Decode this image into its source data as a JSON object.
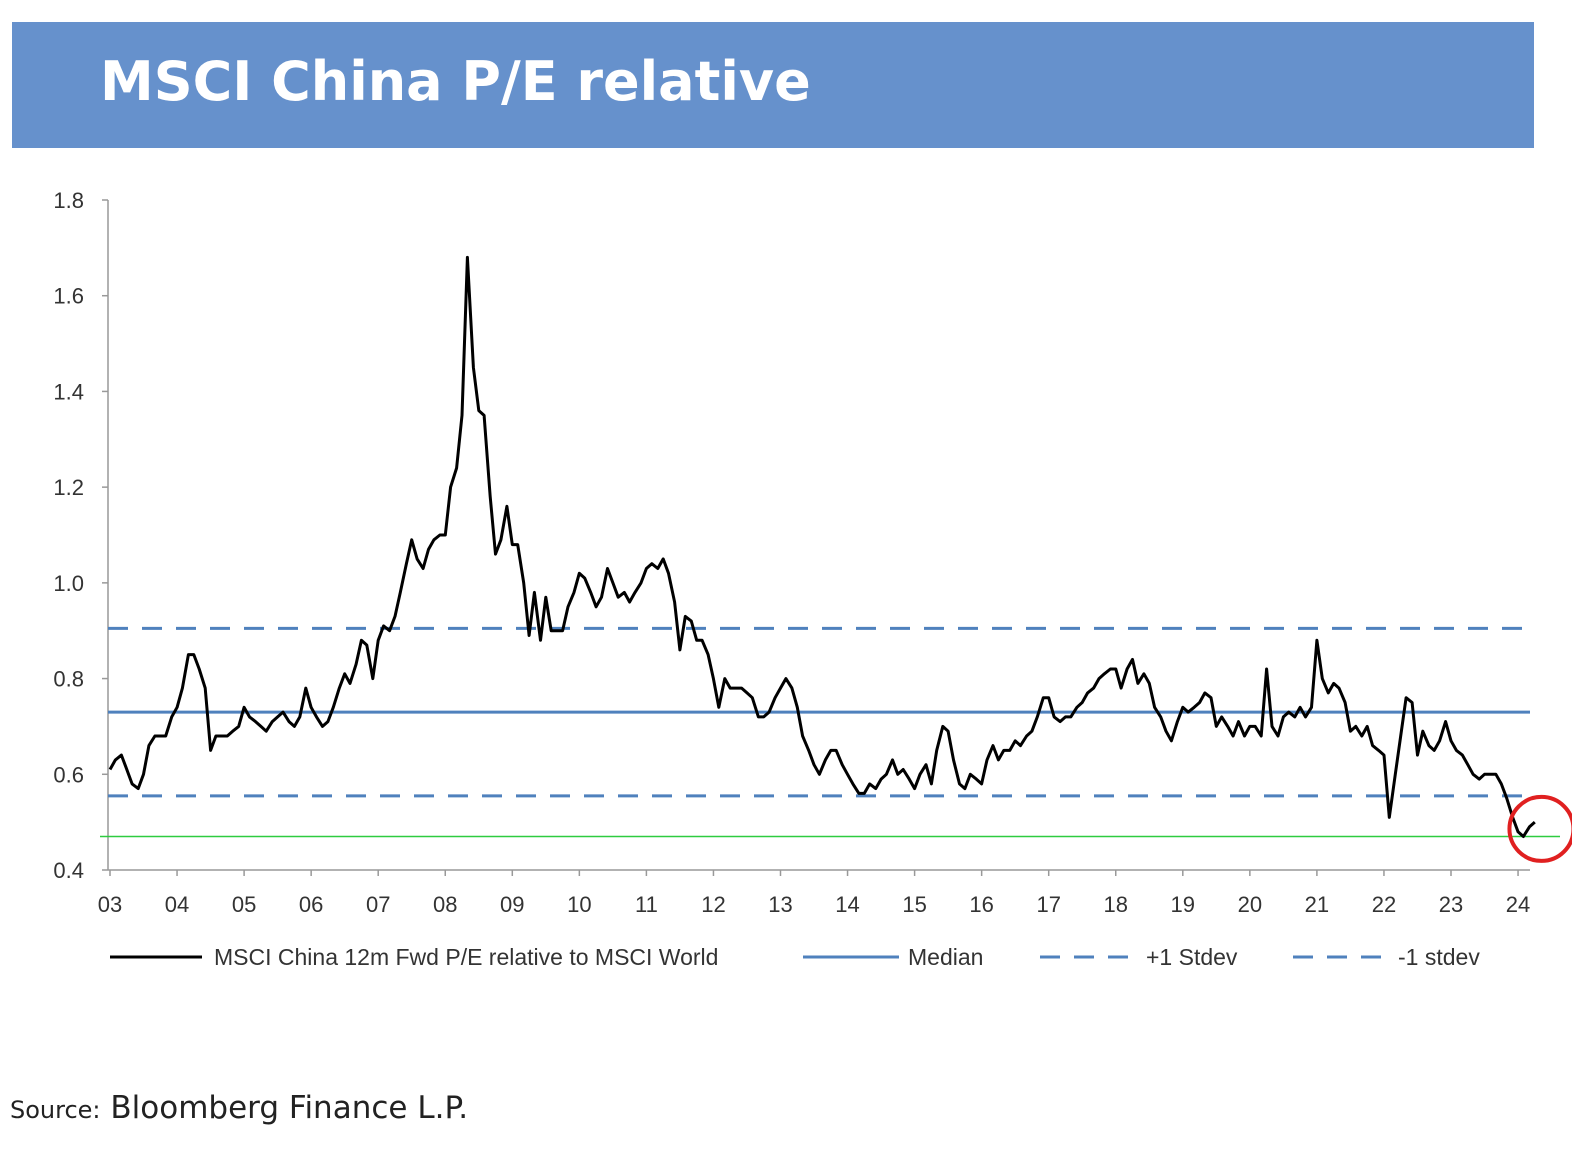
{
  "title": "MSCI China P/E relative",
  "source": {
    "label": "Source:",
    "text": "Bloomberg Finance L.P."
  },
  "colors": {
    "banner": "#6691cc",
    "series": "#000000",
    "median": "#4f81bd",
    "stdev": "#4f81bd",
    "low_line": "#2ecc40",
    "highlight_circle": "#e02020"
  },
  "chart_data": {
    "type": "line",
    "x_tick_labels": [
      "03",
      "04",
      "05",
      "06",
      "07",
      "08",
      "09",
      "10",
      "11",
      "12",
      "13",
      "14",
      "15",
      "16",
      "17",
      "18",
      "19",
      "20",
      "21",
      "22",
      "23",
      "24"
    ],
    "x_range": [
      2003.0,
      2024.3
    ],
    "y_tick_labels": [
      "0.4",
      "0.6",
      "0.8",
      "1.0",
      "1.2",
      "1.4",
      "1.6",
      "1.8"
    ],
    "ylim": [
      0.4,
      1.8
    ],
    "grid": false,
    "legend_position": "bottom",
    "series": [
      {
        "name": "MSCI China 12m Fwd P/E relative to MSCI World",
        "style": "solid-black",
        "points": [
          [
            2003.0,
            0.61
          ],
          [
            2003.08,
            0.63
          ],
          [
            2003.17,
            0.64
          ],
          [
            2003.25,
            0.61
          ],
          [
            2003.33,
            0.58
          ],
          [
            2003.42,
            0.57
          ],
          [
            2003.5,
            0.6
          ],
          [
            2003.58,
            0.66
          ],
          [
            2003.67,
            0.68
          ],
          [
            2003.75,
            0.68
          ],
          [
            2003.83,
            0.68
          ],
          [
            2003.92,
            0.72
          ],
          [
            2004.0,
            0.74
          ],
          [
            2004.08,
            0.78
          ],
          [
            2004.17,
            0.85
          ],
          [
            2004.25,
            0.85
          ],
          [
            2004.33,
            0.82
          ],
          [
            2004.42,
            0.78
          ],
          [
            2004.5,
            0.65
          ],
          [
            2004.58,
            0.68
          ],
          [
            2004.67,
            0.68
          ],
          [
            2004.75,
            0.68
          ],
          [
            2004.83,
            0.69
          ],
          [
            2004.92,
            0.7
          ],
          [
            2005.0,
            0.74
          ],
          [
            2005.08,
            0.72
          ],
          [
            2005.17,
            0.71
          ],
          [
            2005.25,
            0.7
          ],
          [
            2005.33,
            0.69
          ],
          [
            2005.42,
            0.71
          ],
          [
            2005.5,
            0.72
          ],
          [
            2005.58,
            0.73
          ],
          [
            2005.67,
            0.71
          ],
          [
            2005.75,
            0.7
          ],
          [
            2005.83,
            0.72
          ],
          [
            2005.92,
            0.78
          ],
          [
            2006.0,
            0.74
          ],
          [
            2006.08,
            0.72
          ],
          [
            2006.17,
            0.7
          ],
          [
            2006.25,
            0.71
          ],
          [
            2006.33,
            0.74
          ],
          [
            2006.42,
            0.78
          ],
          [
            2006.5,
            0.81
          ],
          [
            2006.58,
            0.79
          ],
          [
            2006.67,
            0.83
          ],
          [
            2006.75,
            0.88
          ],
          [
            2006.83,
            0.87
          ],
          [
            2006.92,
            0.8
          ],
          [
            2007.0,
            0.88
          ],
          [
            2007.08,
            0.91
          ],
          [
            2007.17,
            0.9
          ],
          [
            2007.25,
            0.93
          ],
          [
            2007.33,
            0.98
          ],
          [
            2007.42,
            1.04
          ],
          [
            2007.5,
            1.09
          ],
          [
            2007.58,
            1.05
          ],
          [
            2007.67,
            1.03
          ],
          [
            2007.75,
            1.07
          ],
          [
            2007.83,
            1.09
          ],
          [
            2007.92,
            1.1
          ],
          [
            2008.0,
            1.1
          ],
          [
            2008.08,
            1.2
          ],
          [
            2008.17,
            1.24
          ],
          [
            2008.25,
            1.35
          ],
          [
            2008.33,
            1.68
          ],
          [
            2008.42,
            1.45
          ],
          [
            2008.5,
            1.36
          ],
          [
            2008.58,
            1.35
          ],
          [
            2008.67,
            1.18
          ],
          [
            2008.75,
            1.06
          ],
          [
            2008.83,
            1.09
          ],
          [
            2008.92,
            1.16
          ],
          [
            2009.0,
            1.08
          ],
          [
            2009.08,
            1.08
          ],
          [
            2009.17,
            1.0
          ],
          [
            2009.25,
            0.89
          ],
          [
            2009.33,
            0.98
          ],
          [
            2009.42,
            0.88
          ],
          [
            2009.5,
            0.97
          ],
          [
            2009.58,
            0.9
          ],
          [
            2009.67,
            0.9
          ],
          [
            2009.75,
            0.9
          ],
          [
            2009.83,
            0.95
          ],
          [
            2009.92,
            0.98
          ],
          [
            2010.0,
            1.02
          ],
          [
            2010.08,
            1.01
          ],
          [
            2010.17,
            0.98
          ],
          [
            2010.25,
            0.95
          ],
          [
            2010.33,
            0.97
          ],
          [
            2010.42,
            1.03
          ],
          [
            2010.5,
            1.0
          ],
          [
            2010.58,
            0.97
          ],
          [
            2010.67,
            0.98
          ],
          [
            2010.75,
            0.96
          ],
          [
            2010.83,
            0.98
          ],
          [
            2010.92,
            1.0
          ],
          [
            2011.0,
            1.03
          ],
          [
            2011.08,
            1.04
          ],
          [
            2011.17,
            1.03
          ],
          [
            2011.25,
            1.05
          ],
          [
            2011.33,
            1.02
          ],
          [
            2011.42,
            0.96
          ],
          [
            2011.5,
            0.86
          ],
          [
            2011.58,
            0.93
          ],
          [
            2011.67,
            0.92
          ],
          [
            2011.75,
            0.88
          ],
          [
            2011.83,
            0.88
          ],
          [
            2011.92,
            0.85
          ],
          [
            2012.0,
            0.8
          ],
          [
            2012.08,
            0.74
          ],
          [
            2012.17,
            0.8
          ],
          [
            2012.25,
            0.78
          ],
          [
            2012.33,
            0.78
          ],
          [
            2012.42,
            0.78
          ],
          [
            2012.5,
            0.77
          ],
          [
            2012.58,
            0.76
          ],
          [
            2012.67,
            0.72
          ],
          [
            2012.75,
            0.72
          ],
          [
            2012.83,
            0.73
          ],
          [
            2012.92,
            0.76
          ],
          [
            2013.0,
            0.78
          ],
          [
            2013.08,
            0.8
          ],
          [
            2013.17,
            0.78
          ],
          [
            2013.25,
            0.74
          ],
          [
            2013.33,
            0.68
          ],
          [
            2013.42,
            0.65
          ],
          [
            2013.5,
            0.62
          ],
          [
            2013.58,
            0.6
          ],
          [
            2013.67,
            0.63
          ],
          [
            2013.75,
            0.65
          ],
          [
            2013.83,
            0.65
          ],
          [
            2013.92,
            0.62
          ],
          [
            2014.0,
            0.6
          ],
          [
            2014.08,
            0.58
          ],
          [
            2014.17,
            0.56
          ],
          [
            2014.25,
            0.56
          ],
          [
            2014.33,
            0.58
          ],
          [
            2014.42,
            0.57
          ],
          [
            2014.5,
            0.59
          ],
          [
            2014.58,
            0.6
          ],
          [
            2014.67,
            0.63
          ],
          [
            2014.75,
            0.6
          ],
          [
            2014.83,
            0.61
          ],
          [
            2014.92,
            0.59
          ],
          [
            2015.0,
            0.57
          ],
          [
            2015.08,
            0.6
          ],
          [
            2015.17,
            0.62
          ],
          [
            2015.25,
            0.58
          ],
          [
            2015.33,
            0.65
          ],
          [
            2015.42,
            0.7
          ],
          [
            2015.5,
            0.69
          ],
          [
            2015.58,
            0.63
          ],
          [
            2015.67,
            0.58
          ],
          [
            2015.75,
            0.57
          ],
          [
            2015.83,
            0.6
          ],
          [
            2015.92,
            0.59
          ],
          [
            2016.0,
            0.58
          ],
          [
            2016.08,
            0.63
          ],
          [
            2016.17,
            0.66
          ],
          [
            2016.25,
            0.63
          ],
          [
            2016.33,
            0.65
          ],
          [
            2016.42,
            0.65
          ],
          [
            2016.5,
            0.67
          ],
          [
            2016.58,
            0.66
          ],
          [
            2016.67,
            0.68
          ],
          [
            2016.75,
            0.69
          ],
          [
            2016.83,
            0.72
          ],
          [
            2016.92,
            0.76
          ],
          [
            2017.0,
            0.76
          ],
          [
            2017.08,
            0.72
          ],
          [
            2017.17,
            0.71
          ],
          [
            2017.25,
            0.72
          ],
          [
            2017.33,
            0.72
          ],
          [
            2017.42,
            0.74
          ],
          [
            2017.5,
            0.75
          ],
          [
            2017.58,
            0.77
          ],
          [
            2017.67,
            0.78
          ],
          [
            2017.75,
            0.8
          ],
          [
            2017.83,
            0.81
          ],
          [
            2017.92,
            0.82
          ],
          [
            2018.0,
            0.82
          ],
          [
            2018.08,
            0.78
          ],
          [
            2018.17,
            0.82
          ],
          [
            2018.25,
            0.84
          ],
          [
            2018.33,
            0.79
          ],
          [
            2018.42,
            0.81
          ],
          [
            2018.5,
            0.79
          ],
          [
            2018.58,
            0.74
          ],
          [
            2018.67,
            0.72
          ],
          [
            2018.75,
            0.69
          ],
          [
            2018.83,
            0.67
          ],
          [
            2018.92,
            0.71
          ],
          [
            2019.0,
            0.74
          ],
          [
            2019.08,
            0.73
          ],
          [
            2019.17,
            0.74
          ],
          [
            2019.25,
            0.75
          ],
          [
            2019.33,
            0.77
          ],
          [
            2019.42,
            0.76
          ],
          [
            2019.5,
            0.7
          ],
          [
            2019.58,
            0.72
          ],
          [
            2019.67,
            0.7
          ],
          [
            2019.75,
            0.68
          ],
          [
            2019.83,
            0.71
          ],
          [
            2019.92,
            0.68
          ],
          [
            2020.0,
            0.7
          ],
          [
            2020.08,
            0.7
          ],
          [
            2020.17,
            0.68
          ],
          [
            2020.25,
            0.82
          ],
          [
            2020.33,
            0.7
          ],
          [
            2020.42,
            0.68
          ],
          [
            2020.5,
            0.72
          ],
          [
            2020.58,
            0.73
          ],
          [
            2020.67,
            0.72
          ],
          [
            2020.75,
            0.74
          ],
          [
            2020.83,
            0.72
          ],
          [
            2020.92,
            0.74
          ],
          [
            2021.0,
            0.88
          ],
          [
            2021.08,
            0.8
          ],
          [
            2021.17,
            0.77
          ],
          [
            2021.25,
            0.79
          ],
          [
            2021.33,
            0.78
          ],
          [
            2021.42,
            0.75
          ],
          [
            2021.5,
            0.69
          ],
          [
            2021.58,
            0.7
          ],
          [
            2021.67,
            0.68
          ],
          [
            2021.75,
            0.7
          ],
          [
            2021.83,
            0.66
          ],
          [
            2021.92,
            0.65
          ],
          [
            2022.0,
            0.64
          ],
          [
            2022.08,
            0.51
          ],
          [
            2022.17,
            0.6
          ],
          [
            2022.25,
            0.68
          ],
          [
            2022.33,
            0.76
          ],
          [
            2022.42,
            0.75
          ],
          [
            2022.5,
            0.64
          ],
          [
            2022.58,
            0.69
          ],
          [
            2022.67,
            0.66
          ],
          [
            2022.75,
            0.65
          ],
          [
            2022.83,
            0.67
          ],
          [
            2022.92,
            0.71
          ],
          [
            2023.0,
            0.67
          ],
          [
            2023.08,
            0.65
          ],
          [
            2023.17,
            0.64
          ],
          [
            2023.25,
            0.62
          ],
          [
            2023.33,
            0.6
          ],
          [
            2023.42,
            0.59
          ],
          [
            2023.5,
            0.6
          ],
          [
            2023.58,
            0.6
          ],
          [
            2023.67,
            0.6
          ],
          [
            2023.75,
            0.58
          ],
          [
            2023.83,
            0.55
          ],
          [
            2023.92,
            0.51
          ],
          [
            2024.0,
            0.48
          ],
          [
            2024.08,
            0.47
          ],
          [
            2024.17,
            0.49
          ],
          [
            2024.25,
            0.5
          ]
        ]
      },
      {
        "name": "Median",
        "style": "solid-blue",
        "value": 0.73
      },
      {
        "name": "+1 Stdev",
        "style": "dashed-blue",
        "value": 0.905
      },
      {
        "name": "-1 stdev",
        "style": "dashed-blue",
        "value": 0.555
      }
    ],
    "annotations": [
      {
        "type": "horizontal-line",
        "value": 0.47,
        "color": "#2ecc40"
      },
      {
        "type": "circle",
        "x": 2024.17,
        "y": 0.49,
        "color": "#e02020"
      }
    ]
  }
}
